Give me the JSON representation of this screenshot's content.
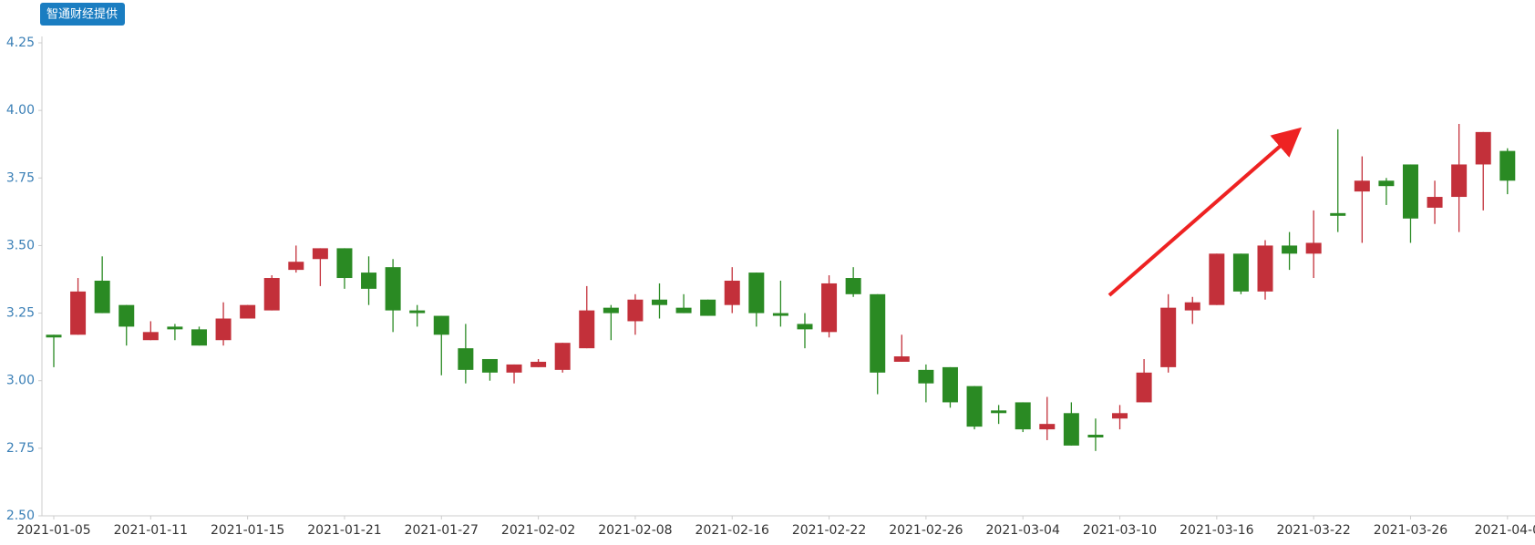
{
  "chart_data": {
    "type": "candlestick",
    "badge": "智通财经提供",
    "categories": [
      "2021-01-05",
      null,
      null,
      null,
      "2021-01-11",
      null,
      null,
      null,
      "2021-01-15",
      null,
      null,
      null,
      "2021-01-21",
      null,
      null,
      null,
      "2021-01-27",
      null,
      null,
      null,
      "2021-02-02",
      null,
      null,
      null,
      "2021-02-08",
      null,
      null,
      null,
      "2021-02-16",
      null,
      null,
      null,
      "2021-02-22",
      null,
      null,
      null,
      "2021-02-26",
      null,
      null,
      null,
      "2021-03-04",
      null,
      null,
      null,
      "2021-03-10",
      null,
      null,
      null,
      "2021-03-16",
      null,
      null,
      null,
      "2021-03-22",
      null,
      null,
      null,
      "2021-03-26",
      null,
      null,
      null,
      "2021-04-0"
    ],
    "open": [
      3.17,
      3.17,
      3.37,
      3.28,
      3.15,
      3.2,
      3.19,
      3.15,
      3.23,
      3.26,
      3.41,
      3.45,
      3.49,
      3.4,
      3.42,
      3.26,
      3.24,
      3.12,
      3.08,
      3.03,
      3.05,
      3.04,
      3.12,
      3.27,
      3.22,
      3.3,
      3.27,
      3.3,
      3.28,
      3.4,
      3.25,
      3.21,
      3.18,
      3.38,
      3.32,
      3.07,
      3.04,
      3.05,
      2.98,
      2.89,
      2.92,
      2.82,
      2.88,
      2.8,
      2.86,
      2.92,
      3.05,
      3.26,
      3.28,
      3.47,
      3.33,
      3.5,
      3.47,
      3.62,
      3.7,
      3.74,
      3.8,
      3.64,
      3.68,
      3.8,
      3.85
    ],
    "high": [
      3.17,
      3.38,
      3.46,
      3.28,
      3.22,
      3.21,
      3.2,
      3.29,
      3.28,
      3.39,
      3.5,
      3.49,
      3.49,
      3.46,
      3.45,
      3.28,
      3.24,
      3.21,
      3.08,
      3.06,
      3.08,
      3.14,
      3.35,
      3.28,
      3.32,
      3.36,
      3.32,
      3.3,
      3.42,
      3.4,
      3.37,
      3.25,
      3.39,
      3.42,
      3.32,
      3.17,
      3.06,
      3.05,
      2.98,
      2.91,
      2.92,
      2.94,
      2.92,
      2.86,
      2.91,
      3.08,
      3.32,
      3.31,
      3.47,
      3.47,
      3.52,
      3.55,
      3.63,
      3.93,
      3.83,
      3.75,
      3.8,
      3.74,
      3.95,
      3.92,
      3.86
    ],
    "low": [
      3.05,
      3.17,
      3.25,
      3.13,
      3.15,
      3.15,
      3.13,
      3.13,
      3.23,
      3.26,
      3.4,
      3.35,
      3.34,
      3.28,
      3.18,
      3.2,
      3.02,
      2.99,
      3.0,
      2.99,
      3.05,
      3.03,
      3.12,
      3.15,
      3.17,
      3.23,
      3.25,
      3.24,
      3.25,
      3.2,
      3.2,
      3.12,
      3.16,
      3.31,
      2.95,
      3.07,
      2.92,
      2.9,
      2.82,
      2.84,
      2.81,
      2.78,
      2.76,
      2.74,
      2.82,
      2.92,
      3.03,
      3.21,
      3.28,
      3.32,
      3.3,
      3.41,
      3.38,
      3.55,
      3.51,
      3.65,
      3.51,
      3.58,
      3.55,
      3.63,
      3.69
    ],
    "close": [
      3.16,
      3.33,
      3.25,
      3.2,
      3.18,
      3.19,
      3.13,
      3.23,
      3.28,
      3.38,
      3.44,
      3.49,
      3.38,
      3.34,
      3.26,
      3.25,
      3.17,
      3.04,
      3.03,
      3.06,
      3.07,
      3.14,
      3.26,
      3.25,
      3.3,
      3.28,
      3.25,
      3.24,
      3.37,
      3.25,
      3.24,
      3.19,
      3.36,
      3.32,
      3.03,
      3.09,
      2.99,
      2.92,
      2.83,
      2.88,
      2.82,
      2.84,
      2.76,
      2.79,
      2.88,
      3.03,
      3.27,
      3.29,
      3.47,
      3.33,
      3.5,
      3.47,
      3.51,
      3.61,
      3.74,
      3.72,
      3.6,
      3.68,
      3.8,
      3.92,
      3.74
    ],
    "up_color": "#c3303a",
    "down_color": "#2a8a23",
    "ylim": [
      2.5,
      4.25
    ],
    "yticks": [
      {
        "value": 2.5,
        "label": "2.50"
      },
      2.75,
      {
        "value": 3.0,
        "label": "3.00"
      },
      3.25,
      {
        "value": 3.5,
        "label": "3.50"
      },
      3.75,
      {
        "value": 4.0,
        "label": "4.00"
      },
      4.25
    ]
  }
}
